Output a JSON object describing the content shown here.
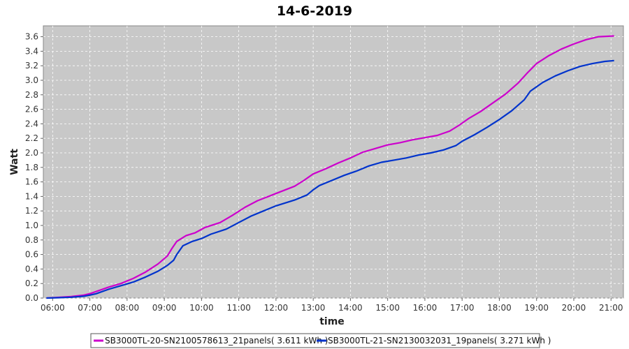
{
  "chart_data": {
    "type": "line",
    "title": "14-6-2019",
    "xlabel": "time",
    "ylabel": "Watt",
    "xlim": [
      "05:45",
      "21:20"
    ],
    "ylim": [
      0,
      3.75
    ],
    "x_ticks": [
      "06:00",
      "07:00",
      "08:00",
      "09:00",
      "10:00",
      "11:00",
      "12:00",
      "13:00",
      "14:00",
      "15:00",
      "16:00",
      "17:00",
      "18:00",
      "19:00",
      "20:00",
      "21:00"
    ],
    "y_ticks": [
      "0.0",
      "0.2",
      "0.4",
      "0.6",
      "0.8",
      "1.0",
      "1.2",
      "1.4",
      "1.6",
      "1.8",
      "2.0",
      "2.2",
      "2.4",
      "2.6",
      "2.8",
      "3.0",
      "3.2",
      "3.4",
      "3.6"
    ],
    "grid": true,
    "legend_position": "bottom",
    "background": "#c8c8c8",
    "series": [
      {
        "name": "SB3000TL-20-SN2100578613_21panels( 3.611 kWh )",
        "color": "#cc00cc",
        "points": [
          [
            "05:50",
            0.0
          ],
          [
            "06:10",
            0.01
          ],
          [
            "06:30",
            0.02
          ],
          [
            "06:50",
            0.04
          ],
          [
            "07:00",
            0.06
          ],
          [
            "07:10",
            0.09
          ],
          [
            "07:30",
            0.15
          ],
          [
            "07:50",
            0.2
          ],
          [
            "08:10",
            0.27
          ],
          [
            "08:30",
            0.36
          ],
          [
            "08:50",
            0.47
          ],
          [
            "09:05",
            0.58
          ],
          [
            "09:12",
            0.68
          ],
          [
            "09:20",
            0.78
          ],
          [
            "09:35",
            0.86
          ],
          [
            "09:50",
            0.9
          ],
          [
            "10:05",
            0.97
          ],
          [
            "10:30",
            1.04
          ],
          [
            "10:50",
            1.14
          ],
          [
            "11:10",
            1.25
          ],
          [
            "11:30",
            1.34
          ],
          [
            "12:00",
            1.44
          ],
          [
            "12:30",
            1.54
          ],
          [
            "12:45",
            1.62
          ],
          [
            "13:00",
            1.71
          ],
          [
            "13:20",
            1.78
          ],
          [
            "13:40",
            1.86
          ],
          [
            "14:00",
            1.93
          ],
          [
            "14:20",
            2.01
          ],
          [
            "14:40",
            2.06
          ],
          [
            "15:00",
            2.11
          ],
          [
            "15:20",
            2.14
          ],
          [
            "15:40",
            2.18
          ],
          [
            "16:00",
            2.21
          ],
          [
            "16:20",
            2.24
          ],
          [
            "16:40",
            2.3
          ],
          [
            "16:55",
            2.38
          ],
          [
            "17:10",
            2.47
          ],
          [
            "17:30",
            2.57
          ],
          [
            "17:50",
            2.69
          ],
          [
            "18:10",
            2.81
          ],
          [
            "18:30",
            2.96
          ],
          [
            "18:45",
            3.1
          ],
          [
            "19:00",
            3.23
          ],
          [
            "19:20",
            3.34
          ],
          [
            "19:40",
            3.43
          ],
          [
            "20:00",
            3.5
          ],
          [
            "20:20",
            3.56
          ],
          [
            "20:40",
            3.6
          ],
          [
            "21:05",
            3.611
          ]
        ]
      },
      {
        "name": "SB3000TL-21-SN2130032031_19panels( 3.271 kWh )",
        "color": "#0033cc",
        "points": [
          [
            "05:50",
            0.0
          ],
          [
            "06:10",
            0.005
          ],
          [
            "06:30",
            0.012
          ],
          [
            "06:50",
            0.025
          ],
          [
            "07:00",
            0.04
          ],
          [
            "07:10",
            0.06
          ],
          [
            "07:30",
            0.12
          ],
          [
            "07:50",
            0.17
          ],
          [
            "08:10",
            0.22
          ],
          [
            "08:30",
            0.29
          ],
          [
            "08:50",
            0.37
          ],
          [
            "09:05",
            0.45
          ],
          [
            "09:15",
            0.52
          ],
          [
            "09:20",
            0.6
          ],
          [
            "09:30",
            0.72
          ],
          [
            "09:45",
            0.78
          ],
          [
            "10:00",
            0.82
          ],
          [
            "10:15",
            0.88
          ],
          [
            "10:40",
            0.95
          ],
          [
            "11:00",
            1.04
          ],
          [
            "11:20",
            1.13
          ],
          [
            "11:40",
            1.2
          ],
          [
            "12:00",
            1.27
          ],
          [
            "12:30",
            1.35
          ],
          [
            "12:50",
            1.42
          ],
          [
            "13:00",
            1.49
          ],
          [
            "13:10",
            1.55
          ],
          [
            "13:30",
            1.62
          ],
          [
            "13:50",
            1.69
          ],
          [
            "14:10",
            1.75
          ],
          [
            "14:30",
            1.82
          ],
          [
            "14:50",
            1.87
          ],
          [
            "15:10",
            1.9
          ],
          [
            "15:30",
            1.93
          ],
          [
            "15:50",
            1.97
          ],
          [
            "16:10",
            2.0
          ],
          [
            "16:30",
            2.04
          ],
          [
            "16:50",
            2.1
          ],
          [
            "17:00",
            2.16
          ],
          [
            "17:20",
            2.25
          ],
          [
            "17:40",
            2.35
          ],
          [
            "18:00",
            2.46
          ],
          [
            "18:20",
            2.58
          ],
          [
            "18:40",
            2.73
          ],
          [
            "18:50",
            2.85
          ],
          [
            "19:10",
            2.97
          ],
          [
            "19:30",
            3.06
          ],
          [
            "19:50",
            3.13
          ],
          [
            "20:10",
            3.19
          ],
          [
            "20:30",
            3.23
          ],
          [
            "20:50",
            3.26
          ],
          [
            "21:05",
            3.271
          ]
        ]
      }
    ]
  }
}
